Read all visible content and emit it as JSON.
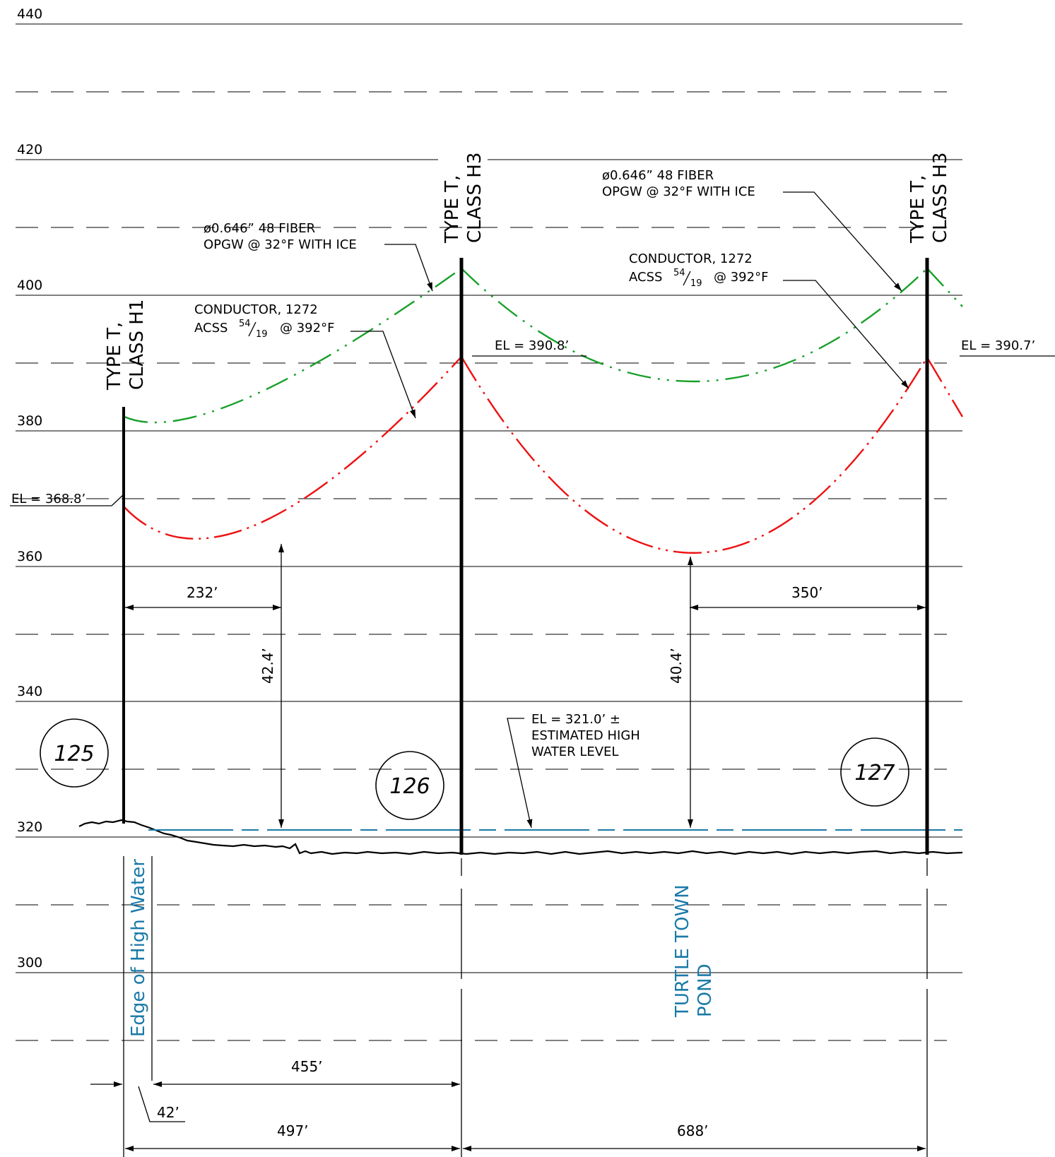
{
  "elevations": [
    "440",
    "420",
    "400",
    "380",
    "360",
    "340",
    "320",
    "300"
  ],
  "poles": {
    "p125": {
      "tag": "125",
      "type": "TYPE T,",
      "class": "CLASS H1",
      "el": "EL = 368.8’"
    },
    "p126": {
      "tag": "126",
      "type": "TYPE T,",
      "class": "CLASS H3",
      "el": "EL = 390.8’"
    },
    "p127": {
      "tag": "127",
      "type": "TYPE T,",
      "class": "CLASS H3",
      "el": "EL = 390.7’"
    }
  },
  "notes": {
    "opgw_line1": "ø0.646” 48 FIBER",
    "opgw_line2": "OPGW @ 32°F WITH ICE",
    "cond_line1": "CONDUCTOR, 1272",
    "cond_acss": "ACSS",
    "cond_frac_num": "54",
    "cond_frac_den": "19",
    "cond_temp": "@ 392°F",
    "hw_line1": "EL = 321.0’ ±",
    "hw_line2": "ESTIMATED HIGH",
    "hw_line3": "WATER LEVEL"
  },
  "water_labels": {
    "edge": "Edge of High Water",
    "pond_line1": "TURTLE TOWN",
    "pond_line2": "POND"
  },
  "dimensions": {
    "d232": "232’",
    "d350": "350’",
    "d42_4": "42.4’",
    "d40_4": "40.4’",
    "d455": "455’",
    "d42": "42’",
    "d497": "497’",
    "d688": "688’"
  },
  "colors": {
    "opgw": "#17a02a",
    "conductor": "#ee1111",
    "water": "#1a7aa8",
    "line": "#000000"
  }
}
